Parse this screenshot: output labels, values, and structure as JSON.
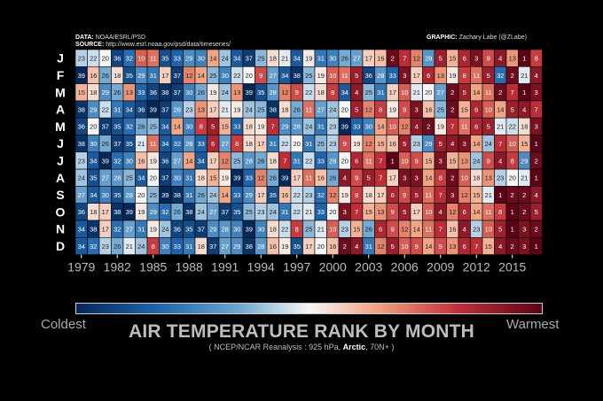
{
  "credits": {
    "data_label": "DATA:",
    "data_value": "NOAA/ESRL/PSD",
    "source_label": "SOURCE:",
    "source_value": "http://www.esrl.noaa.gov/psd/data/timeseries/",
    "graphic_label": "GRAPHIC:",
    "graphic_value": "Zachary Labe (@ZLabe)"
  },
  "colorbar": {
    "left_label": "Coldest",
    "right_label": "Warmest",
    "colors": [
      "#052858",
      "#2166ac",
      "#6ea6d0",
      "#f7f7f7",
      "#f0a07e",
      "#c0303a",
      "#5b0417"
    ]
  },
  "title": "AIR TEMPERATURE RANK BY MONTH",
  "subtitle": {
    "prefix": "( NCEP/NCAR Reanalysis : 925 hPa, ",
    "region": "Arctic",
    "suffix": ", 70N+ )"
  },
  "chart_data": {
    "type": "heatmap",
    "title": "AIR TEMPERATURE RANK BY MONTH",
    "rows": [
      "J",
      "F",
      "M",
      "A",
      "M",
      "J",
      "J",
      "A",
      "S",
      "O",
      "N",
      "D"
    ],
    "years": [
      1979,
      1980,
      1981,
      1982,
      1983,
      1984,
      1985,
      1986,
      1987,
      1988,
      1989,
      1990,
      1991,
      1992,
      1993,
      1994,
      1995,
      1996,
      1997,
      1998,
      1999,
      2000,
      2001,
      2002,
      2003,
      2004,
      2005,
      2006,
      2007,
      2008,
      2009,
      2010,
      2011,
      2012,
      2013,
      2014,
      2015,
      2016,
      2017
    ],
    "x_tick_labels": [
      "1979",
      "1982",
      "1985",
      "1988",
      "1991",
      "1994",
      "1997",
      "2000",
      "2003",
      "2006",
      "2009",
      "2012",
      "2015"
    ],
    "rank_range": [
      1,
      39
    ],
    "low_rank_is": "warmest",
    "values": [
      [
        23,
        22,
        20,
        36,
        32,
        10,
        11,
        35,
        33,
        29,
        30,
        14,
        24,
        34,
        37,
        25,
        18,
        21,
        34,
        19,
        31,
        30,
        26,
        27,
        17,
        16,
        2,
        7,
        12,
        28,
        5,
        15,
        6,
        3,
        9,
        4,
        13,
        1,
        8
      ],
      [
        39,
        16,
        26,
        18,
        35,
        29,
        31,
        17,
        37,
        12,
        14,
        25,
        30,
        22,
        20,
        9,
        27,
        34,
        38,
        25,
        19,
        10,
        11,
        5,
        36,
        28,
        33,
        3,
        17,
        6,
        13,
        19,
        8,
        11,
        5,
        32,
        2,
        21,
        4
      ],
      [
        15,
        18,
        29,
        26,
        13,
        33,
        36,
        38,
        37,
        30,
        26,
        19,
        24,
        13,
        39,
        35,
        28,
        12,
        9,
        22,
        18,
        8,
        34,
        4,
        25,
        31,
        17,
        10,
        21,
        20,
        27,
        2,
        5,
        14,
        11,
        2,
        7,
        1,
        3
      ],
      [
        38,
        29,
        22,
        31,
        34,
        36,
        39,
        37,
        28,
        23,
        13,
        17,
        21,
        19,
        24,
        25,
        38,
        18,
        26,
        11,
        27,
        24,
        20,
        5,
        12,
        8,
        19,
        9,
        3,
        16,
        25,
        2,
        15,
        6,
        10,
        14,
        5,
        4,
        7
      ],
      [
        36,
        20,
        37,
        35,
        32,
        26,
        25,
        34,
        14,
        30,
        8,
        5,
        15,
        33,
        18,
        19,
        7,
        29,
        28,
        24,
        31,
        23,
        39,
        33,
        30,
        14,
        10,
        12,
        4,
        2,
        19,
        7,
        11,
        6,
        5,
        21,
        22,
        18,
        3
      ],
      [
        38,
        30,
        26,
        37,
        35,
        21,
        11,
        34,
        32,
        28,
        33,
        6,
        27,
        8,
        18,
        17,
        31,
        22,
        20,
        31,
        25,
        23,
        9,
        19,
        12,
        15,
        16,
        5,
        23,
        29,
        5,
        4,
        3,
        14,
        24,
        7,
        10,
        15,
        1
      ],
      [
        23,
        34,
        39,
        32,
        30,
        16,
        19,
        36,
        27,
        14,
        34,
        17,
        12,
        25,
        28,
        26,
        18,
        7,
        31,
        22,
        33,
        28,
        20,
        6,
        11,
        7,
        1,
        10,
        9,
        15,
        3,
        15,
        13,
        24,
        9,
        4,
        8,
        29,
        2
      ],
      [
        24,
        35,
        27,
        28,
        25,
        34,
        20,
        37,
        30,
        31,
        18,
        15,
        19,
        39,
        33,
        12,
        26,
        39,
        17,
        11,
        16,
        26,
        4,
        9,
        5,
        7,
        17,
        3,
        3,
        14,
        8,
        2,
        10,
        18,
        13,
        23,
        20,
        21,
        1
      ],
      [
        27,
        34,
        30,
        35,
        28,
        20,
        25,
        39,
        38,
        31,
        26,
        24,
        14,
        33,
        29,
        17,
        35,
        16,
        22,
        23,
        32,
        12,
        19,
        8,
        18,
        17,
        6,
        9,
        5,
        11,
        7,
        3,
        12,
        15,
        21,
        1,
        2,
        2,
        4
      ],
      [
        36,
        18,
        17,
        38,
        39,
        19,
        29,
        32,
        26,
        38,
        24,
        27,
        37,
        35,
        25,
        23,
        24,
        31,
        22,
        21,
        33,
        20,
        3,
        7,
        15,
        13,
        9,
        5,
        17,
        10,
        4,
        12,
        6,
        14,
        11,
        8,
        1,
        2,
        5
      ],
      [
        34,
        38,
        17,
        32,
        27,
        31,
        19,
        24,
        36,
        35,
        37,
        29,
        28,
        30,
        39,
        30,
        18,
        22,
        8,
        25,
        21,
        10,
        23,
        15,
        26,
        6,
        9,
        12,
        14,
        11,
        7,
        16,
        4,
        23,
        10,
        5,
        1,
        3,
        2
      ],
      [
        34,
        32,
        23,
        26,
        21,
        24,
        8,
        30,
        33,
        31,
        18,
        37,
        27,
        29,
        38,
        28,
        16,
        19,
        35,
        17,
        20,
        16,
        2,
        4,
        31,
        12,
        5,
        10,
        9,
        14,
        9,
        13,
        6,
        7,
        15,
        4,
        2,
        3,
        1
      ]
    ]
  }
}
